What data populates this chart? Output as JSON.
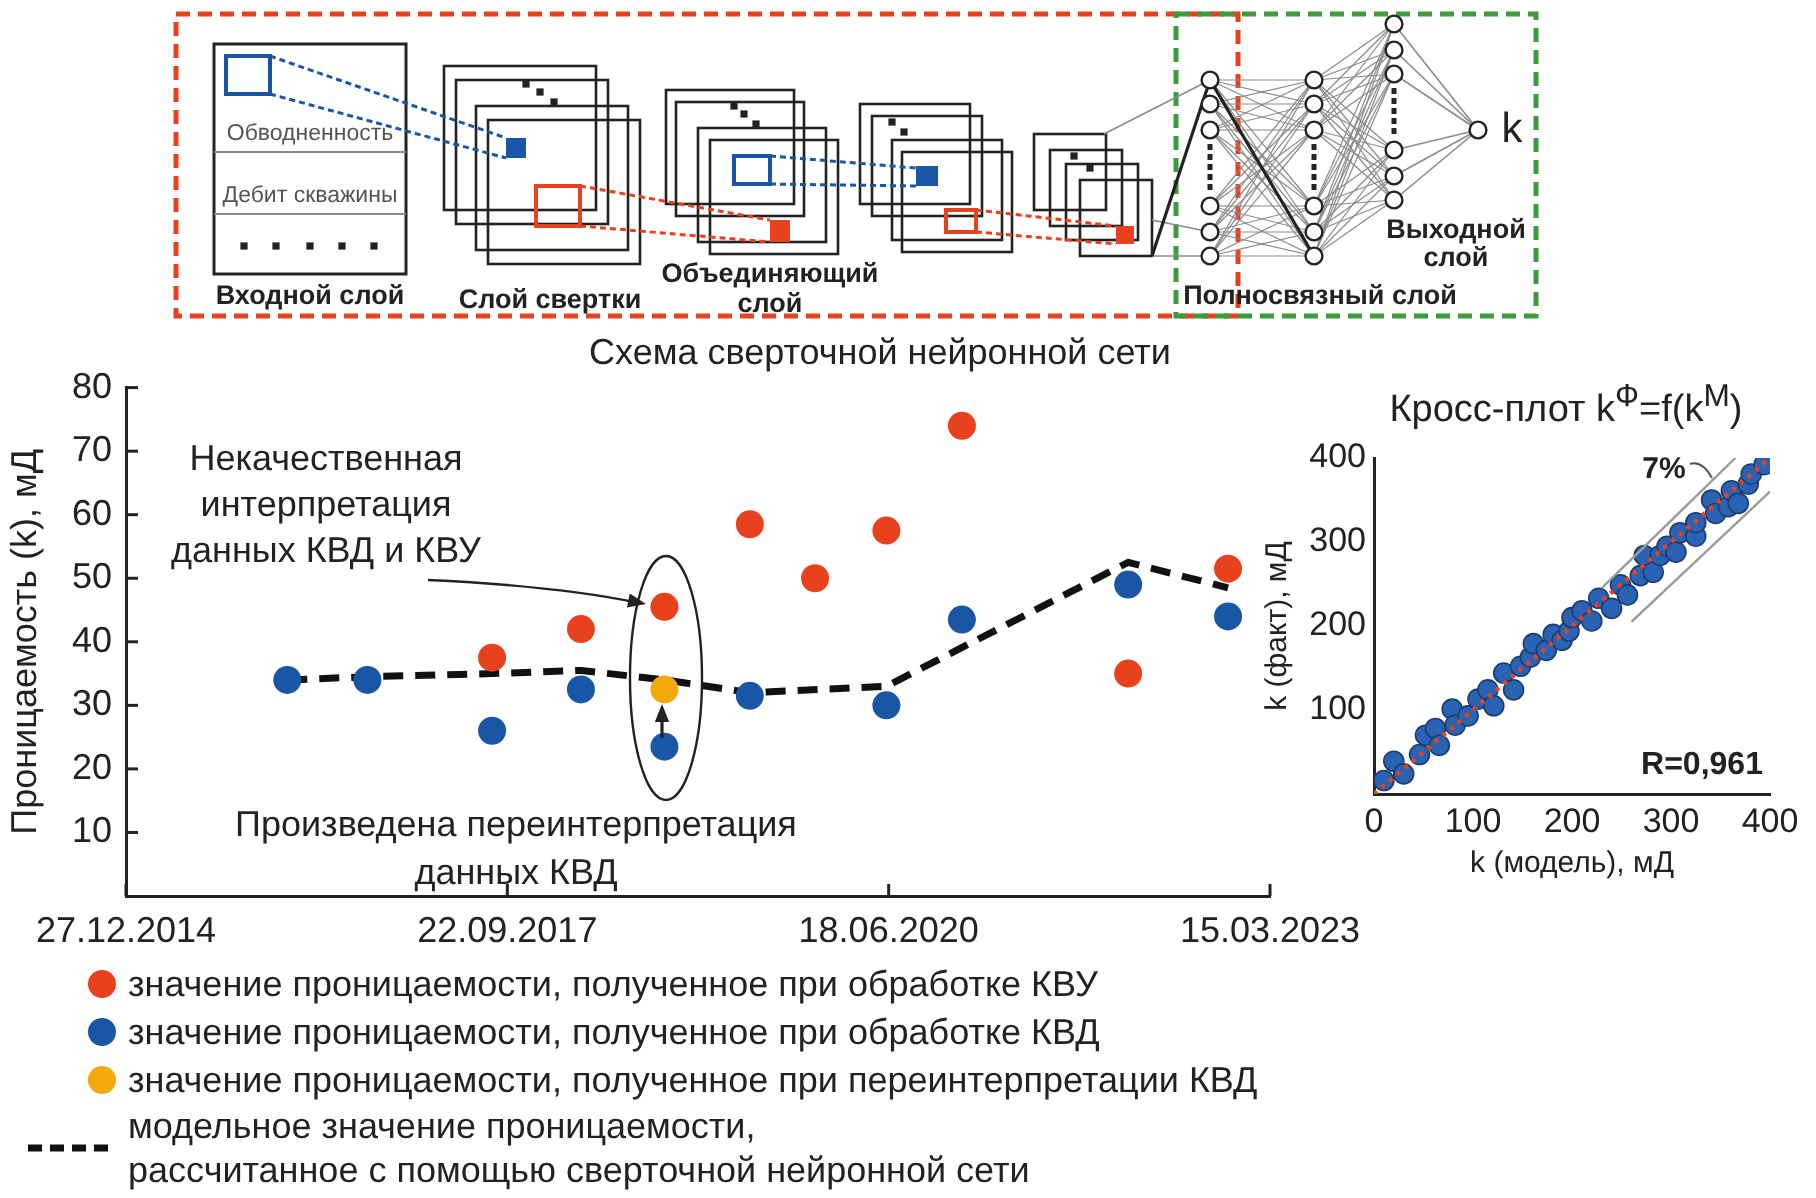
{
  "chart_data": [
    {
      "type": "other",
      "title": "Схема сверточной нейронной сети",
      "annotations": [
        "Обводненность",
        "Дебит скважины",
        "Входной слой",
        "Слой свертки",
        "Объединяющий слой",
        "Полносвязный слой",
        "Выходной слой",
        "k"
      ]
    },
    {
      "type": "scatter",
      "ylabel": "Проницаемость (k), мД",
      "xlim": [
        "2014-12-27",
        "2023-03-15"
      ],
      "xticks": [
        {
          "value": "2014-12-27",
          "label": "27.12.2014"
        },
        {
          "value": "2017-09-22",
          "label": "22.09.2017"
        },
        {
          "value": "2020-06-18",
          "label": "18.06.2020"
        },
        {
          "value": "2023-03-15",
          "label": "15.03.2023"
        }
      ],
      "ylim": [
        0,
        80
      ],
      "yticks": [
        10,
        20,
        30,
        40,
        50,
        60,
        70,
        80
      ],
      "legend": "bottom left",
      "marker": "circle",
      "series": [
        {
          "name": "значение проницаемости, полученное при обработке КВУ",
          "color": "#e8411d",
          "x": [
            "2017-08-13",
            "2018-04-03",
            "2018-11-08",
            "2019-06-20",
            "2019-12-08",
            "2020-06-12",
            "2020-12-27",
            "2022-03-08",
            "2022-11-25"
          ],
          "values": [
            37.5,
            42,
            45.5,
            58.5,
            50,
            57.5,
            74,
            35,
            51.5
          ]
        },
        {
          "name": "значение проницаемости, полученное при обработке КВД",
          "color": "#1a56a6",
          "x": [
            "2016-02-23",
            "2016-09-20",
            "2017-08-13",
            "2018-04-03",
            "2018-11-08",
            "2019-06-20",
            "2020-06-12",
            "2020-12-27",
            "2022-03-08",
            "2022-11-25"
          ],
          "values": [
            34,
            34,
            26,
            32.5,
            23.5,
            31.5,
            30,
            43.5,
            49,
            44
          ]
        },
        {
          "name": "значение проницаемости, полученное при переинтерпретации КВД",
          "color": "#f5a80c",
          "x": [
            "2018-11-08"
          ],
          "values": [
            32.5
          ]
        },
        {
          "name": "модельное значение проницаемости,\nрассчитанное с помощью сверточной нейронной сети",
          "type": "line",
          "color": "#111111",
          "line_style": "dashed",
          "marker": "none",
          "x": [
            "2016-02-23",
            "2016-09-20",
            "2017-08-13",
            "2018-04-03",
            "2018-11-08",
            "2019-06-20",
            "2020-06-12",
            "2022-03-08",
            "2022-11-25"
          ],
          "values": [
            34,
            34.5,
            35,
            35.5,
            34,
            32,
            33,
            52.5,
            48.5
          ]
        }
      ],
      "annotations": [
        "Некачественная интерпретация данных КВД и КВУ",
        "Произведена переинтерпретация данных КВД"
      ]
    },
    {
      "type": "scatter",
      "title": "Кросс-плот k$^{Ф}$=f(k$^{М}$)",
      "xlabel": "k (модель), мД",
      "ylabel": "k (факт), мД",
      "xlim": [
        0,
        400
      ],
      "ylim": [
        0,
        400
      ],
      "xticks": [
        0,
        100,
        200,
        300,
        400
      ],
      "yticks": [
        100,
        200,
        300,
        400
      ],
      "marker": "circle",
      "series": [
        {
          "type": "line",
          "color": "#e8411d",
          "line_style": "dotted",
          "marker": "none",
          "x": [
            0,
            400
          ],
          "values": [
            0,
            400
          ]
        },
        {
          "type": "line",
          "color": "#9a9a9a",
          "line_style": "solid",
          "marker": "none",
          "x": [
            230,
            365
          ],
          "values": [
            245,
            400
          ]
        },
        {
          "type": "line",
          "color": "#9a9a9a",
          "line_style": "solid",
          "marker": "none",
          "x": [
            260,
            400
          ],
          "values": [
            205,
            360
          ]
        },
        {
          "color": "#2a62b4",
          "x": [
            10,
            20,
            30,
            46,
            52,
            62,
            66,
            79,
            82,
            95,
            105,
            115,
            121,
            131,
            141,
            148,
            158,
            161,
            174,
            181,
            190,
            197,
            200,
            210,
            220,
            227,
            240,
            249,
            256,
            269,
            273,
            282,
            289,
            296,
            305,
            309,
            325,
            325,
            341,
            345,
            358,
            361,
            368,
            378,
            381,
            394
          ],
          "values": [
            16,
            39,
            24,
            47,
            70,
            78,
            58,
            101,
            82,
            93,
            113,
            124,
            105,
            144,
            124,
            152,
            163,
            179,
            171,
            190,
            183,
            194,
            210,
            218,
            206,
            233,
            221,
            249,
            237,
            260,
            284,
            264,
            284,
            295,
            288,
            311,
            307,
            323,
            350,
            334,
            342,
            361,
            346,
            369,
            381,
            392
          ]
        }
      ],
      "annotations": [
        "7%",
        "R=0,961"
      ]
    }
  ]
}
